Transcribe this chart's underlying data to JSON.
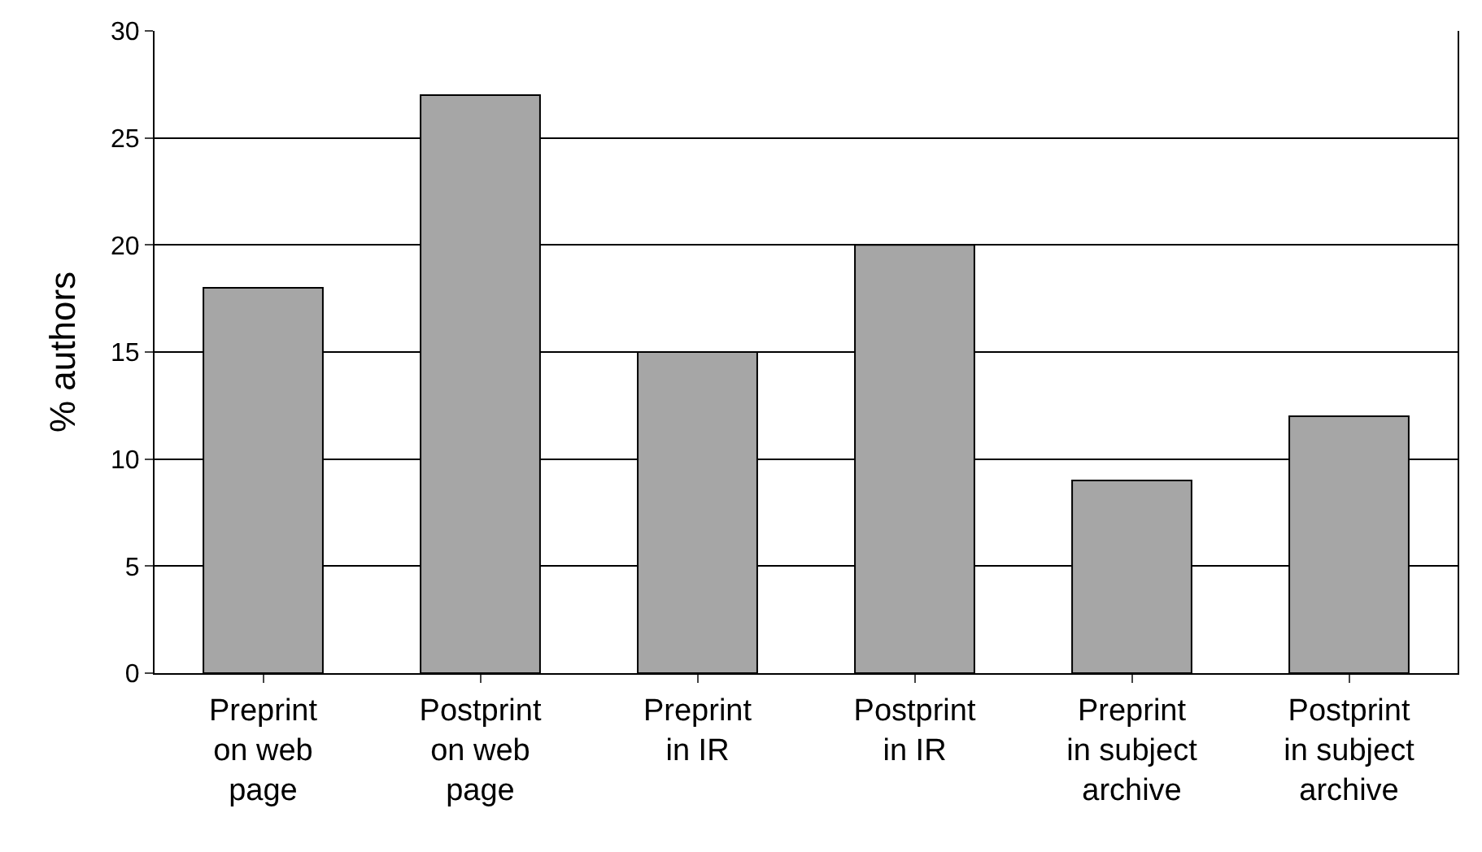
{
  "chart_data": {
    "type": "bar",
    "ylabel": "% authors",
    "categories": [
      "Preprint on web page",
      "Postprint on web page",
      "Preprint in IR",
      "Postprint in IR",
      "Preprint in subject archive",
      "Postprint in subject archive"
    ],
    "values": [
      18,
      27,
      15,
      20,
      9,
      12
    ],
    "color": "#a6a6a6",
    "ylim": [
      0,
      30
    ],
    "yticks": [
      0,
      5,
      10,
      15,
      20,
      25,
      30
    ],
    "grid": "y",
    "legend": false
  }
}
